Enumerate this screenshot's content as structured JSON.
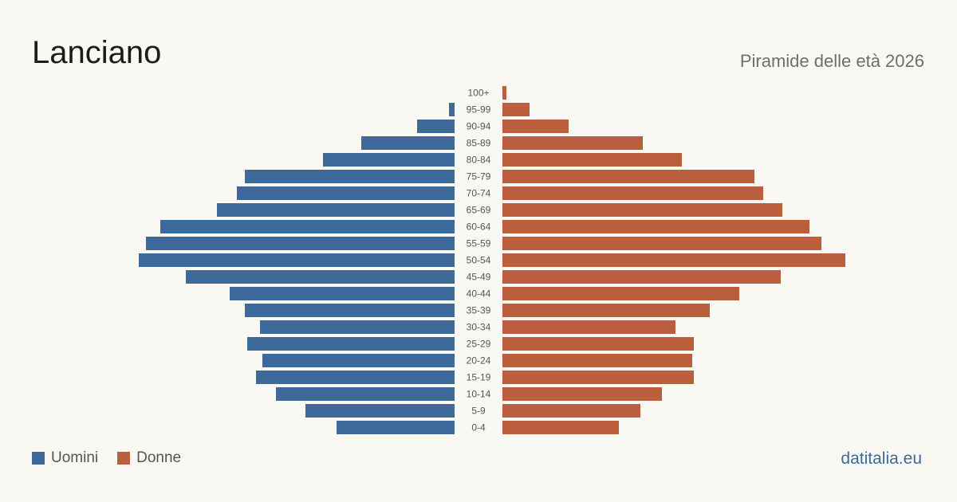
{
  "header": {
    "title": "Lanciano",
    "subtitle": "Piramide delle età 2026"
  },
  "legend": {
    "men_label": "Uomini",
    "women_label": "Donne"
  },
  "footer": {
    "brand": "datitalia.eu"
  },
  "colors": {
    "men": "#3d6a9a",
    "women": "#bb5e3e",
    "background": "#faf8f3",
    "age_label": "#555555"
  },
  "chart_data": {
    "type": "bar",
    "orientation": "horizontal-pyramid",
    "categories": [
      "100+",
      "95-99",
      "90-94",
      "85-89",
      "80-84",
      "75-79",
      "70-74",
      "65-69",
      "60-64",
      "55-59",
      "50-54",
      "45-49",
      "40-44",
      "35-39",
      "30-34",
      "25-29",
      "20-24",
      "15-19",
      "10-14",
      "5-9",
      "0-4"
    ],
    "series": [
      {
        "name": "Uomini",
        "values": [
          0,
          7,
          47,
          117,
          165,
          263,
          273,
          298,
          369,
          387,
          396,
          337,
          282,
          263,
          244,
          260,
          241,
          249,
          224,
          187,
          148
        ]
      },
      {
        "name": "Donne",
        "values": [
          5,
          34,
          83,
          176,
          225,
          316,
          327,
          351,
          385,
          400,
          430,
          349,
          297,
          260,
          217,
          240,
          238,
          240,
          200,
          173,
          146
        ]
      }
    ],
    "value_max": 430,
    "xlabel": "",
    "ylabel": "",
    "grid": false,
    "legend_position": "bottom-left"
  }
}
